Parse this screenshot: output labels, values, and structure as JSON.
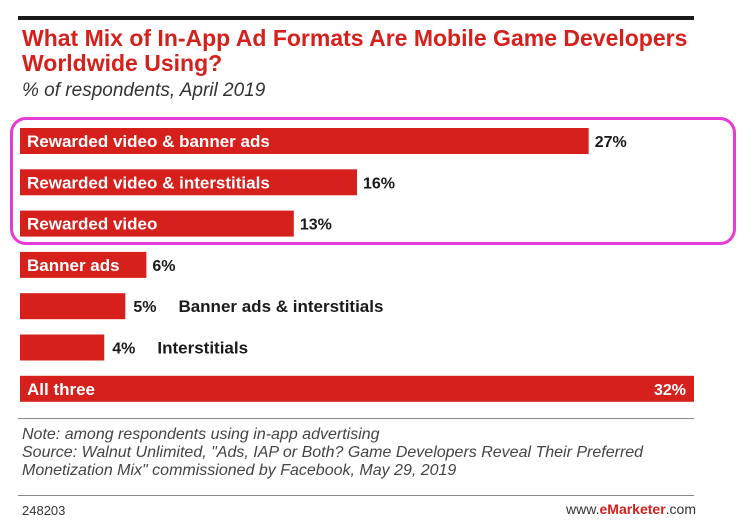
{
  "chart_data": {
    "type": "bar",
    "orientation": "horizontal",
    "title": "What Mix of In-App Ad Formats Are Mobile Game Developers Worldwide Using?",
    "subtitle": "% of respondents, April 2019",
    "categories": [
      "Rewarded video & banner ads",
      "Rewarded video & interstitials",
      "Rewarded video",
      "Banner ads",
      "Banner ads & interstitials",
      "Interstitials",
      "All three"
    ],
    "values": [
      27,
      16,
      13,
      6,
      5,
      4,
      32
    ],
    "value_labels": [
      "27%",
      "16%",
      "13%",
      "6%",
      "5%",
      "4%",
      "32%"
    ],
    "xlim": [
      0,
      32
    ],
    "bar_color": "#d6201c",
    "highlight_color": "#e83ad6",
    "highlighted_categories": [
      "Rewarded video & banner ads",
      "Rewarded video & interstitials",
      "Rewarded video"
    ]
  },
  "footer": {
    "note": "Note: among respondents using in-app advertising",
    "source": "Source: Walnut Unlimited, \"Ads, IAP or Both? Game Developers Reveal Their Preferred Monetization Mix\" commissioned by Facebook, May 29, 2019",
    "chart_id": "248203",
    "brand_prefix": "www.",
    "brand_name": "eMarketer",
    "brand_suffix": ".com"
  }
}
